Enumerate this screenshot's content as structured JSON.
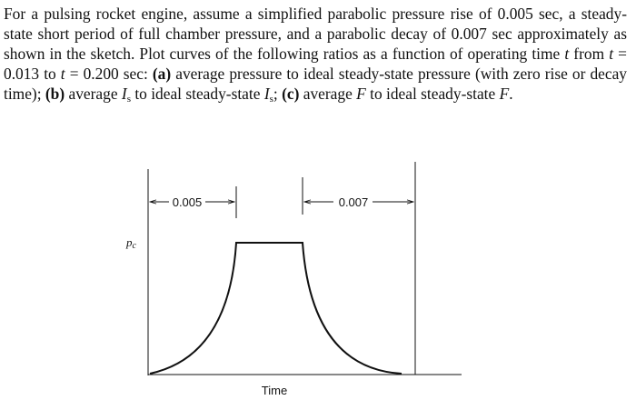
{
  "problem": {
    "text": [
      "For a pulsing rocket engine, assume a simplified parabolic pressure rise of 0.005 sec, a steady-state short period of full chamber pressure, and a parabolic decay of 0.007 sec approximately as shown in the sketch. Plot curves of the following ratios as a function of operating time ",
      "t",
      " from ",
      "t",
      " = 0.013 to ",
      "t",
      " = 0.200  sec: ",
      "(a)",
      " average pressure to ideal steady-state pressure (with zero rise or decay time); ",
      "(b)",
      " average ",
      "I",
      "s",
      " to ideal steady-state ",
      "I",
      "s",
      "; ",
      "(c)",
      " average ",
      "F",
      " to ideal steady-state ",
      "F",
      "."
    ]
  },
  "sketch": {
    "rise_label": "0.005",
    "decay_label": "0.007",
    "y_axis_label": "p",
    "y_axis_sub": "c",
    "x_axis_label": "Time"
  }
}
